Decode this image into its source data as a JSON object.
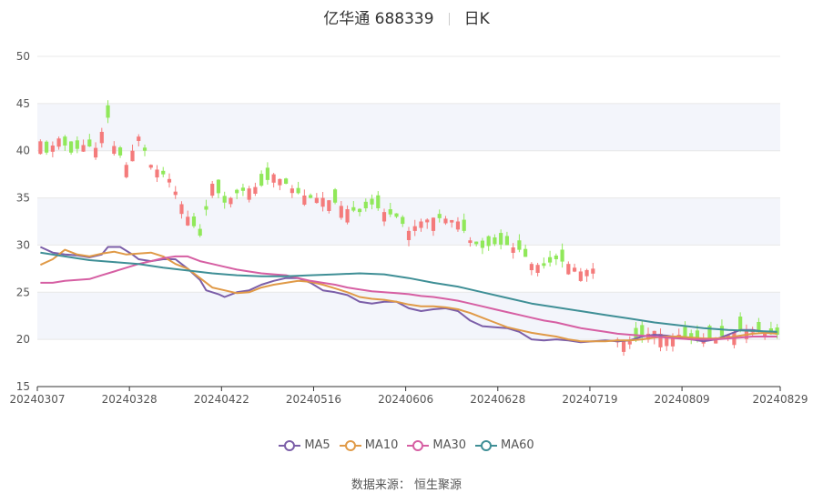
{
  "header": {
    "name_code": "亿华通 688339",
    "period": "日K"
  },
  "source": "数据来源： 恒生聚源",
  "colors": {
    "up": "#f47b7b",
    "down": "#90e85a",
    "grid": "#e8e8e8",
    "band": "#f3f5fb",
    "axis": "#555555"
  },
  "chart_data": {
    "type": "candlestick",
    "y_axis": {
      "min": 15,
      "max": 50,
      "ticks": [
        15,
        20,
        25,
        30,
        35,
        40,
        45,
        50
      ]
    },
    "x_tick_labels": [
      "20240307",
      "20240328",
      "20240422",
      "20240516",
      "20240606",
      "20240628",
      "20240719",
      "20240809",
      "20240829"
    ],
    "x_tick_index": [
      0,
      15,
      30,
      45,
      60,
      75,
      90,
      105,
      120
    ],
    "total_days": 121,
    "gap": {
      "start": 91,
      "end": 93
    },
    "price_path": [
      [
        0,
        41.0
      ],
      [
        1,
        39.8
      ],
      [
        3,
        41.3
      ],
      [
        5,
        39.8
      ],
      [
        7,
        40.6
      ],
      [
        9,
        40.3
      ],
      [
        10,
        42.0
      ],
      [
        11,
        43.5
      ],
      [
        12,
        40.5
      ],
      [
        14,
        38.5
      ],
      [
        16,
        41.5
      ],
      [
        18,
        38.5
      ],
      [
        21,
        37.0
      ],
      [
        24,
        33.0
      ],
      [
        26,
        31.0
      ],
      [
        28,
        36.5
      ],
      [
        30,
        34.5
      ],
      [
        32,
        35.5
      ],
      [
        34,
        36.0
      ],
      [
        36,
        36.3
      ],
      [
        38,
        37.5
      ],
      [
        40,
        36.5
      ],
      [
        42,
        35.5
      ],
      [
        44,
        35.0
      ],
      [
        46,
        35.0
      ],
      [
        48,
        34.5
      ],
      [
        50,
        33.8
      ],
      [
        52,
        33.5
      ],
      [
        54,
        34.3
      ],
      [
        56,
        33.5
      ],
      [
        58,
        33.0
      ],
      [
        60,
        31.5
      ],
      [
        62,
        32.5
      ],
      [
        64,
        32.9
      ],
      [
        66,
        32.8
      ],
      [
        68,
        32.5
      ],
      [
        70,
        30.5
      ],
      [
        72,
        29.7
      ],
      [
        74,
        30.1
      ],
      [
        76,
        30.0
      ],
      [
        78,
        29.5
      ],
      [
        80,
        28.0
      ],
      [
        82,
        27.8
      ],
      [
        84,
        28.5
      ],
      [
        86,
        28.0
      ],
      [
        88,
        27.2
      ],
      [
        90,
        27.5
      ],
      [
        94,
        20.0
      ],
      [
        96,
        19.8
      ],
      [
        98,
        20.3
      ],
      [
        100,
        20.9
      ],
      [
        102,
        20.3
      ],
      [
        104,
        20.5
      ],
      [
        106,
        20.0
      ],
      [
        108,
        20.0
      ],
      [
        110,
        20.2
      ],
      [
        112,
        20.5
      ],
      [
        114,
        21.0
      ],
      [
        116,
        21.0
      ],
      [
        118,
        20.6
      ],
      [
        120,
        20.5
      ]
    ],
    "series": [
      {
        "name": "MA5",
        "color": "#7b5ea8",
        "path": [
          [
            0,
            29.8
          ],
          [
            2,
            29.2
          ],
          [
            4,
            29.0
          ],
          [
            6,
            28.9
          ],
          [
            8,
            28.7
          ],
          [
            10,
            29.0
          ],
          [
            11,
            29.8
          ],
          [
            13,
            29.8
          ],
          [
            15,
            29.0
          ],
          [
            16,
            28.5
          ],
          [
            18,
            28.3
          ],
          [
            20,
            28.5
          ],
          [
            22,
            28.5
          ],
          [
            24,
            27.5
          ],
          [
            26,
            26.3
          ],
          [
            27,
            25.2
          ],
          [
            29,
            24.8
          ],
          [
            30,
            24.5
          ],
          [
            32,
            25.0
          ],
          [
            34,
            25.2
          ],
          [
            36,
            25.8
          ],
          [
            38,
            26.2
          ],
          [
            40,
            26.5
          ],
          [
            42,
            26.5
          ],
          [
            44,
            26.0
          ],
          [
            46,
            25.2
          ],
          [
            48,
            25.0
          ],
          [
            50,
            24.7
          ],
          [
            52,
            24.0
          ],
          [
            54,
            23.8
          ],
          [
            56,
            24.0
          ],
          [
            58,
            24.0
          ],
          [
            60,
            23.3
          ],
          [
            62,
            23.0
          ],
          [
            64,
            23.2
          ],
          [
            66,
            23.3
          ],
          [
            68,
            23.0
          ],
          [
            70,
            22.0
          ],
          [
            72,
            21.4
          ],
          [
            74,
            21.3
          ],
          [
            76,
            21.2
          ],
          [
            78,
            20.8
          ],
          [
            80,
            20.0
          ],
          [
            82,
            19.9
          ],
          [
            84,
            20.0
          ],
          [
            86,
            19.9
          ],
          [
            88,
            19.7
          ],
          [
            90,
            19.8
          ],
          [
            92,
            19.9
          ],
          [
            94,
            19.8
          ],
          [
            96,
            19.9
          ],
          [
            98,
            20.3
          ],
          [
            100,
            20.5
          ],
          [
            102,
            20.4
          ],
          [
            104,
            20.2
          ],
          [
            106,
            20.0
          ],
          [
            108,
            19.8
          ],
          [
            110,
            20.0
          ],
          [
            112,
            20.5
          ],
          [
            114,
            21.0
          ],
          [
            116,
            21.0
          ],
          [
            118,
            20.8
          ],
          [
            120,
            20.7
          ]
        ]
      },
      {
        "name": "MA10",
        "color": "#e09a47",
        "path": [
          [
            0,
            27.9
          ],
          [
            2,
            28.5
          ],
          [
            4,
            29.5
          ],
          [
            6,
            29.0
          ],
          [
            8,
            28.8
          ],
          [
            10,
            29.1
          ],
          [
            12,
            29.3
          ],
          [
            14,
            29.0
          ],
          [
            16,
            29.1
          ],
          [
            18,
            29.2
          ],
          [
            20,
            28.8
          ],
          [
            22,
            28.0
          ],
          [
            24,
            27.5
          ],
          [
            26,
            26.5
          ],
          [
            28,
            25.5
          ],
          [
            30,
            25.2
          ],
          [
            32,
            24.9
          ],
          [
            34,
            25.0
          ],
          [
            36,
            25.5
          ],
          [
            38,
            25.8
          ],
          [
            40,
            26.0
          ],
          [
            42,
            26.2
          ],
          [
            44,
            26.1
          ],
          [
            46,
            25.8
          ],
          [
            48,
            25.4
          ],
          [
            50,
            25.0
          ],
          [
            52,
            24.5
          ],
          [
            54,
            24.3
          ],
          [
            56,
            24.2
          ],
          [
            58,
            24.0
          ],
          [
            60,
            23.7
          ],
          [
            62,
            23.5
          ],
          [
            64,
            23.5
          ],
          [
            66,
            23.4
          ],
          [
            68,
            23.2
          ],
          [
            70,
            22.8
          ],
          [
            72,
            22.3
          ],
          [
            74,
            21.8
          ],
          [
            76,
            21.3
          ],
          [
            78,
            21.0
          ],
          [
            80,
            20.7
          ],
          [
            82,
            20.5
          ],
          [
            84,
            20.3
          ],
          [
            86,
            20.0
          ],
          [
            88,
            19.8
          ],
          [
            90,
            19.8
          ],
          [
            92,
            19.8
          ],
          [
            94,
            19.9
          ],
          [
            96,
            19.9
          ],
          [
            98,
            20.0
          ],
          [
            100,
            20.2
          ],
          [
            102,
            20.3
          ],
          [
            104,
            20.3
          ],
          [
            106,
            20.2
          ],
          [
            108,
            20.1
          ],
          [
            110,
            20.1
          ],
          [
            112,
            20.2
          ],
          [
            114,
            20.4
          ],
          [
            116,
            20.6
          ],
          [
            118,
            20.7
          ],
          [
            120,
            20.6
          ]
        ]
      },
      {
        "name": "MA30",
        "color": "#d65fa3",
        "path": [
          [
            0,
            26.0
          ],
          [
            2,
            26.0
          ],
          [
            4,
            26.2
          ],
          [
            6,
            26.3
          ],
          [
            8,
            26.4
          ],
          [
            10,
            26.8
          ],
          [
            12,
            27.2
          ],
          [
            14,
            27.6
          ],
          [
            16,
            28.0
          ],
          [
            18,
            28.3
          ],
          [
            20,
            28.6
          ],
          [
            22,
            28.8
          ],
          [
            24,
            28.8
          ],
          [
            26,
            28.3
          ],
          [
            28,
            28.0
          ],
          [
            30,
            27.7
          ],
          [
            32,
            27.4
          ],
          [
            34,
            27.2
          ],
          [
            36,
            27.0
          ],
          [
            38,
            26.9
          ],
          [
            40,
            26.8
          ],
          [
            42,
            26.5
          ],
          [
            44,
            26.2
          ],
          [
            46,
            26.0
          ],
          [
            48,
            25.8
          ],
          [
            50,
            25.5
          ],
          [
            52,
            25.3
          ],
          [
            54,
            25.1
          ],
          [
            56,
            25.0
          ],
          [
            58,
            24.9
          ],
          [
            60,
            24.8
          ],
          [
            62,
            24.6
          ],
          [
            64,
            24.5
          ],
          [
            66,
            24.3
          ],
          [
            68,
            24.1
          ],
          [
            70,
            23.8
          ],
          [
            72,
            23.5
          ],
          [
            74,
            23.2
          ],
          [
            76,
            22.9
          ],
          [
            78,
            22.6
          ],
          [
            80,
            22.3
          ],
          [
            82,
            22.0
          ],
          [
            84,
            21.8
          ],
          [
            86,
            21.5
          ],
          [
            88,
            21.2
          ],
          [
            90,
            21.0
          ],
          [
            92,
            20.8
          ],
          [
            94,
            20.6
          ],
          [
            96,
            20.5
          ],
          [
            98,
            20.4
          ],
          [
            100,
            20.3
          ],
          [
            102,
            20.2
          ],
          [
            104,
            20.1
          ],
          [
            106,
            20.0
          ],
          [
            108,
            20.0
          ],
          [
            110,
            20.0
          ],
          [
            112,
            20.1
          ],
          [
            114,
            20.2
          ],
          [
            116,
            20.3
          ],
          [
            118,
            20.3
          ],
          [
            120,
            20.3
          ]
        ]
      },
      {
        "name": "MA60",
        "color": "#3f8f96",
        "path": [
          [
            0,
            29.2
          ],
          [
            4,
            28.8
          ],
          [
            8,
            28.4
          ],
          [
            12,
            28.2
          ],
          [
            16,
            28.0
          ],
          [
            20,
            27.6
          ],
          [
            24,
            27.3
          ],
          [
            28,
            27.0
          ],
          [
            32,
            26.8
          ],
          [
            36,
            26.7
          ],
          [
            40,
            26.7
          ],
          [
            44,
            26.8
          ],
          [
            48,
            26.9
          ],
          [
            52,
            27.0
          ],
          [
            56,
            26.9
          ],
          [
            60,
            26.5
          ],
          [
            64,
            26.0
          ],
          [
            68,
            25.6
          ],
          [
            72,
            25.0
          ],
          [
            76,
            24.4
          ],
          [
            80,
            23.8
          ],
          [
            84,
            23.4
          ],
          [
            88,
            23.0
          ],
          [
            92,
            22.6
          ],
          [
            96,
            22.2
          ],
          [
            100,
            21.8
          ],
          [
            104,
            21.5
          ],
          [
            108,
            21.2
          ],
          [
            112,
            21.0
          ],
          [
            116,
            20.9
          ],
          [
            120,
            20.8
          ]
        ]
      }
    ],
    "legend": [
      "MA5",
      "MA10",
      "MA30",
      "MA60"
    ]
  }
}
